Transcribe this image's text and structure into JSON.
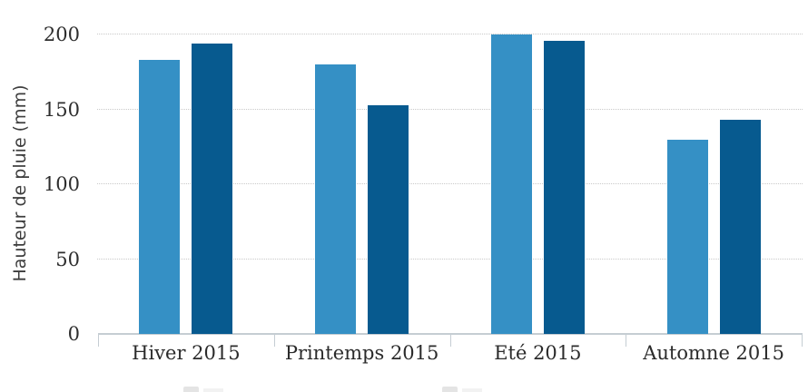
{
  "chart_data": {
    "type": "bar",
    "title": "",
    "xlabel": "",
    "ylabel": "Hauteur de pluie (mm)",
    "ylim": [
      0,
      200
    ],
    "yticks": [
      0,
      50,
      100,
      150,
      200
    ],
    "grid": "horizontal-dotted",
    "legend_position": "bottom-cropped-out-of-view",
    "categories": [
      "Hiver 2015",
      "Printemps 2015",
      "Eté 2015",
      "Automne 2015"
    ],
    "series": [
      {
        "label": "",
        "color": "#3590c5",
        "values": [
          183,
          180,
          200,
          130
        ]
      },
      {
        "label": "",
        "color": "#075a8f",
        "values": [
          194,
          153,
          196,
          143
        ]
      }
    ],
    "style": {
      "axis_color": "#c5cdd3",
      "grid_color": "#c9c9c9",
      "tick_text_color": "#2e2e2e",
      "ylabel_text_color": "#3d3d3d"
    }
  }
}
